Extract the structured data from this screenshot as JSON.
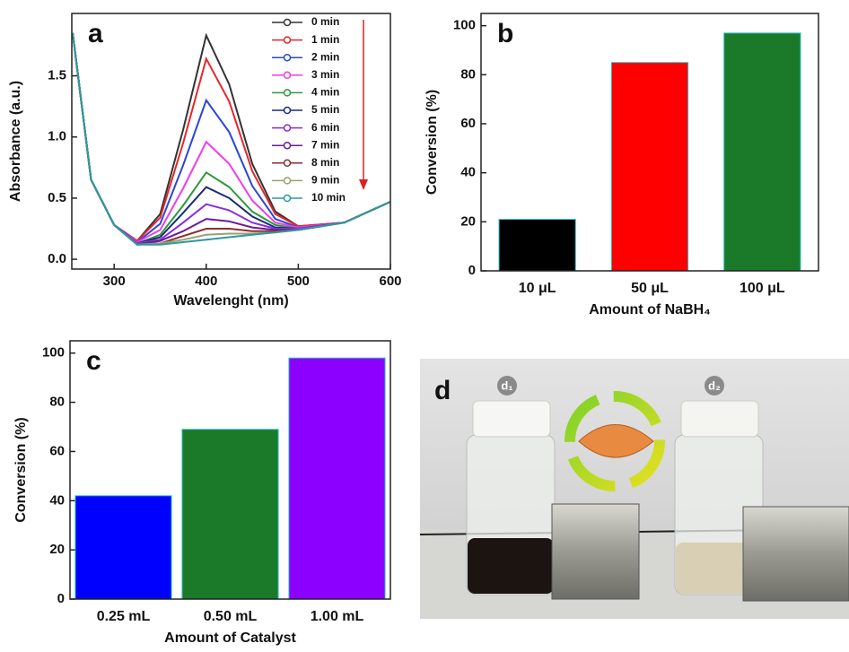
{
  "chart_data": [
    {
      "type": "line",
      "label": "a",
      "xlabel": "Wavelenght (nm)",
      "ylabel": "Absorbance (a.u.)",
      "xlim": [
        254,
        600
      ],
      "xticks": [
        300,
        400,
        500,
        600
      ],
      "ylim": [
        -0.08,
        2.01
      ],
      "yticks": [
        {
          "value": 0,
          "label": "0.0"
        },
        0.5,
        {
          "value": 1,
          "label": "1.0"
        },
        1.5
      ],
      "legend": "top-right",
      "x": [
        255,
        275,
        300,
        325,
        350,
        375,
        400,
        425,
        450,
        475,
        500,
        550,
        600
      ],
      "series": [
        {
          "name": "0 min",
          "color": "#333333",
          "values": [
            1.85,
            0.65,
            0.28,
            0.15,
            0.37,
            1.06,
            1.83,
            1.43,
            0.78,
            0.39,
            0.27,
            0.3,
            0.47
          ]
        },
        {
          "name": "1 min",
          "color": "#e8262a",
          "values": [
            1.85,
            0.65,
            0.28,
            0.15,
            0.34,
            0.95,
            1.64,
            1.29,
            0.72,
            0.37,
            0.27,
            0.3,
            0.47
          ]
        },
        {
          "name": "2 min",
          "color": "#2a46d8",
          "values": [
            1.85,
            0.65,
            0.28,
            0.14,
            0.29,
            0.77,
            1.3,
            1.04,
            0.6,
            0.33,
            0.26,
            0.3,
            0.47
          ]
        },
        {
          "name": "3 min",
          "color": "#ee3cee",
          "values": [
            1.85,
            0.65,
            0.28,
            0.14,
            0.24,
            0.58,
            0.96,
            0.78,
            0.48,
            0.3,
            0.26,
            0.3,
            0.47
          ]
        },
        {
          "name": "4 min",
          "color": "#2d9a3a",
          "values": [
            1.85,
            0.65,
            0.28,
            0.13,
            0.2,
            0.44,
            0.71,
            0.59,
            0.39,
            0.28,
            0.25,
            0.3,
            0.47
          ]
        },
        {
          "name": "5 min",
          "color": "#1b2a7a",
          "values": [
            1.85,
            0.65,
            0.28,
            0.13,
            0.18,
            0.38,
            0.59,
            0.5,
            0.35,
            0.26,
            0.25,
            0.3,
            0.47
          ]
        },
        {
          "name": "6 min",
          "color": "#8a2be2",
          "values": [
            1.85,
            0.65,
            0.28,
            0.13,
            0.16,
            0.3,
            0.45,
            0.4,
            0.3,
            0.25,
            0.25,
            0.3,
            0.47
          ]
        },
        {
          "name": "7 min",
          "color": "#6a1b9a",
          "values": [
            1.85,
            0.65,
            0.28,
            0.12,
            0.15,
            0.23,
            0.33,
            0.31,
            0.26,
            0.24,
            0.24,
            0.3,
            0.47
          ]
        },
        {
          "name": "8 min",
          "color": "#8b2e2e",
          "values": [
            1.85,
            0.65,
            0.28,
            0.12,
            0.13,
            0.19,
            0.25,
            0.25,
            0.23,
            0.23,
            0.24,
            0.3,
            0.47
          ]
        },
        {
          "name": "9 min",
          "color": "#9aa070",
          "values": [
            1.85,
            0.65,
            0.28,
            0.12,
            0.13,
            0.16,
            0.2,
            0.21,
            0.21,
            0.22,
            0.24,
            0.3,
            0.47
          ]
        },
        {
          "name": "10 min",
          "color": "#2a9aa0",
          "values": [
            1.85,
            0.65,
            0.28,
            0.12,
            0.12,
            0.14,
            0.16,
            0.18,
            0.2,
            0.22,
            0.24,
            0.3,
            0.47
          ]
        }
      ]
    },
    {
      "type": "bar",
      "label": "b",
      "xlabel": "Amount of NaBH₄",
      "ylabel": "Conversion (%)",
      "categories": [
        "10 μL",
        "50 μL",
        "100 μL"
      ],
      "values": [
        21,
        85,
        97
      ],
      "colors": [
        "#000000",
        "#ff0000",
        "#1a7a2a"
      ],
      "ylim": [
        0,
        105
      ],
      "yticks": [
        0,
        20,
        40,
        60,
        80,
        100
      ]
    },
    {
      "type": "bar",
      "label": "c",
      "xlabel": "Amount of Catalyst",
      "ylabel": "Conversion (%)",
      "categories": [
        "0.25 mL",
        "0.50 mL",
        "1.00 mL"
      ],
      "values": [
        42,
        69,
        98
      ],
      "colors": [
        "#0000ff",
        "#1a7a2a",
        "#8b00ff"
      ],
      "ylim": [
        0,
        105
      ],
      "yticks": [
        0,
        20,
        40,
        60,
        80,
        100
      ]
    }
  ],
  "photo": {
    "label": "d",
    "vial_labels": [
      "d₁",
      "d₂"
    ]
  }
}
